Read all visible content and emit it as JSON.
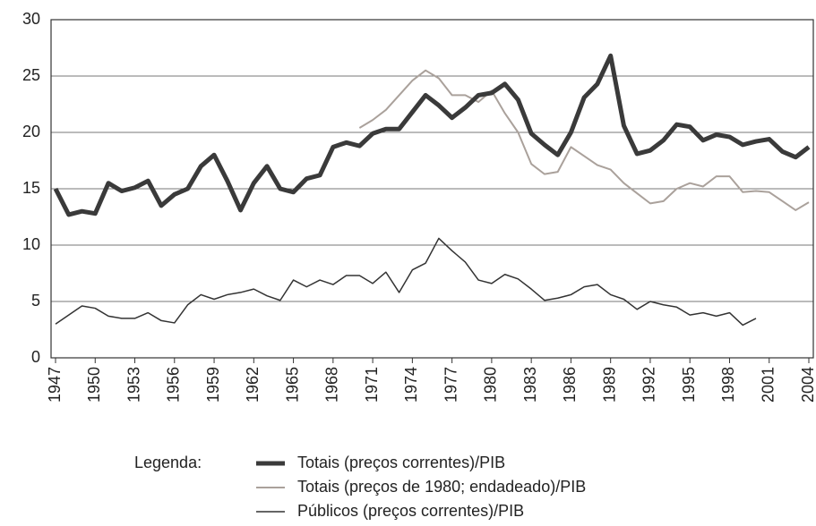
{
  "chart_data": {
    "type": "line",
    "x": [
      1947,
      1948,
      1949,
      1950,
      1951,
      1952,
      1953,
      1954,
      1955,
      1956,
      1957,
      1958,
      1959,
      1960,
      1961,
      1962,
      1963,
      1964,
      1965,
      1966,
      1967,
      1968,
      1969,
      1970,
      1971,
      1972,
      1973,
      1974,
      1975,
      1976,
      1977,
      1978,
      1979,
      1980,
      1981,
      1982,
      1983,
      1984,
      1985,
      1986,
      1987,
      1988,
      1989,
      1990,
      1991,
      1992,
      1993,
      1994,
      1995,
      1996,
      1997,
      1998,
      1999,
      2000,
      2001,
      2002,
      2003,
      2004
    ],
    "series": [
      {
        "name": "Totais (preços correntes)/PIB",
        "color": "#3a3a3a",
        "line_width": 5,
        "values": [
          15,
          12.7,
          13,
          12.8,
          15.5,
          14.8,
          15.1,
          15.7,
          13.5,
          14.5,
          15,
          17,
          18,
          15.7,
          13.1,
          15.5,
          17,
          15,
          14.7,
          15.9,
          16.2,
          18.7,
          19.1,
          18.8,
          19.9,
          20.3,
          20.3,
          21.8,
          23.3,
          22.4,
          21.3,
          22.2,
          23.3,
          23.5,
          24.3,
          22.9,
          19.9,
          18.9,
          18,
          20,
          23.1,
          24.3,
          26.8,
          20.6,
          18.1,
          18.4,
          19.3,
          20.7,
          20.5,
          19.3,
          19.8,
          19.6,
          18.9,
          19.2,
          19.4,
          18.3,
          17.8,
          18.7
        ]
      },
      {
        "name": "Totais (preços de 1980; endadeado)/PIB",
        "color": "#aaa19b",
        "line_width": 2,
        "values": [
          null,
          null,
          null,
          null,
          null,
          null,
          null,
          null,
          null,
          null,
          null,
          null,
          null,
          null,
          null,
          null,
          null,
          null,
          null,
          null,
          null,
          null,
          null,
          20.4,
          21.1,
          22,
          23.3,
          24.6,
          25.5,
          24.8,
          23.3,
          23.3,
          22.7,
          23.7,
          21.7,
          20,
          17.2,
          16.3,
          16.5,
          18.7,
          17.9,
          17.1,
          16.7,
          15.5,
          14.6,
          13.7,
          13.9,
          15,
          15.5,
          15.2,
          16.1,
          16.1,
          14.7,
          14.8,
          14.7,
          13.9,
          13.1,
          13.8
        ]
      },
      {
        "name": "Públicos (preços correntes)/PIB",
        "color": "#333333",
        "line_width": 1.5,
        "values": [
          3,
          3.8,
          4.6,
          4.4,
          3.7,
          3.5,
          3.5,
          4,
          3.3,
          3.1,
          4.7,
          5.6,
          5.2,
          5.6,
          5.8,
          6.1,
          5.5,
          5.1,
          6.9,
          6.3,
          6.9,
          6.5,
          7.3,
          7.3,
          6.6,
          7.6,
          5.8,
          7.8,
          8.4,
          10.6,
          9.5,
          8.5,
          6.9,
          6.6,
          7.4,
          7,
          6.1,
          5.1,
          5.3,
          5.6,
          6.3,
          6.5,
          5.6,
          5.2,
          4.3,
          5,
          4.7,
          4.5,
          3.8,
          4,
          3.7,
          4,
          2.9,
          3.5,
          null,
          null,
          null,
          null
        ]
      }
    ],
    "xlim": [
      1947,
      2004
    ],
    "xticks": [
      1947,
      1950,
      1953,
      1956,
      1959,
      1962,
      1965,
      1968,
      1971,
      1974,
      1977,
      1980,
      1983,
      1986,
      1989,
      1992,
      1995,
      1998,
      2001,
      2004
    ],
    "ylim": [
      0,
      30
    ],
    "yticks": [
      0,
      5,
      10,
      15,
      20,
      25,
      30
    ],
    "grid": true,
    "legend": "bottom",
    "legend_title": "Legenda:"
  }
}
